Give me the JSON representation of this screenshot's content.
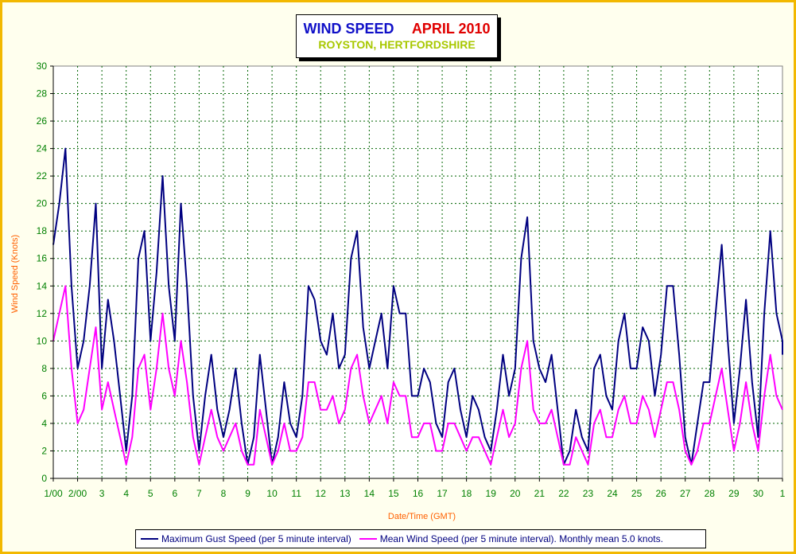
{
  "title": {
    "left": "WIND SPEED",
    "right": "APRIL 2010",
    "subtitle": "ROYSTON, HERTFORDSHIRE"
  },
  "legend": {
    "gust": "Maximum Gust Speed (per 5 minute interval)",
    "mean": "Mean Wind Speed (per 5 minute interval). Monthly mean 5.0 knots."
  },
  "colors": {
    "gust": "#000080",
    "mean": "#ff00ff",
    "grid": "#006400",
    "xtick": "#008000",
    "ytick": "#008000",
    "axis_title": "#ff6000",
    "border": "#f2b800"
  },
  "chart_data": {
    "type": "line",
    "title": "WIND SPEED APRIL 2010",
    "subtitle": "ROYSTON, HERTFORDSHIRE",
    "xlabel": "Date/Time (GMT)",
    "ylabel": "Wind Speed (Knots)",
    "ylim": [
      0,
      30
    ],
    "xlim_days": [
      1,
      31
    ],
    "y_ticks": [
      "0",
      "2",
      "4",
      "6",
      "8",
      "10",
      "12",
      "14",
      "16",
      "18",
      "20",
      "22",
      "24",
      "26",
      "28",
      "30"
    ],
    "x_ticks": [
      "1/00",
      "2/00",
      "3",
      "4",
      "5",
      "6",
      "7",
      "8",
      "9",
      "10",
      "11",
      "12",
      "13",
      "14",
      "15",
      "16",
      "17",
      "18",
      "19",
      "20",
      "21",
      "22",
      "23",
      "24",
      "25",
      "26",
      "27",
      "28",
      "29",
      "30",
      "1"
    ],
    "grid": true,
    "legend_position": "bottom",
    "series": [
      {
        "name": "Maximum Gust Speed (per 5 minute interval)",
        "x_day": [
          1.0,
          1.25,
          1.5,
          1.75,
          2.0,
          2.25,
          2.5,
          2.75,
          3.0,
          3.25,
          3.5,
          3.75,
          4.0,
          4.25,
          4.5,
          4.75,
          5.0,
          5.25,
          5.5,
          5.75,
          6.0,
          6.25,
          6.5,
          6.75,
          7.0,
          7.25,
          7.5,
          7.75,
          8.0,
          8.25,
          8.5,
          8.75,
          9.0,
          9.25,
          9.5,
          9.75,
          10.0,
          10.25,
          10.5,
          10.75,
          11.0,
          11.25,
          11.5,
          11.75,
          12.0,
          12.25,
          12.5,
          12.75,
          13.0,
          13.25,
          13.5,
          13.75,
          14.0,
          14.25,
          14.5,
          14.75,
          15.0,
          15.25,
          15.5,
          15.75,
          16.0,
          16.25,
          16.5,
          16.75,
          17.0,
          17.25,
          17.5,
          17.75,
          18.0,
          18.25,
          18.5,
          18.75,
          19.0,
          19.25,
          19.5,
          19.75,
          20.0,
          20.25,
          20.5,
          20.75,
          21.0,
          21.25,
          21.5,
          21.75,
          22.0,
          22.25,
          22.5,
          22.75,
          23.0,
          23.25,
          23.5,
          23.75,
          24.0,
          24.25,
          24.5,
          24.75,
          25.0,
          25.25,
          25.5,
          25.75,
          26.0,
          26.25,
          26.5,
          26.75,
          27.0,
          27.25,
          27.5,
          27.75,
          28.0,
          28.25,
          28.5,
          28.75,
          29.0,
          29.25,
          29.5,
          29.75,
          30.0,
          30.25,
          30.5,
          30.75,
          31.0,
          31.25
        ],
        "values": [
          17,
          20,
          24,
          14,
          8,
          10,
          14,
          20,
          8,
          13,
          10,
          6,
          2,
          6,
          16,
          18,
          10,
          15,
          22,
          14,
          10,
          20,
          14,
          6,
          2,
          6,
          9,
          5,
          3,
          5,
          8,
          4,
          1,
          3,
          9,
          5,
          1,
          3,
          7,
          4,
          3,
          6,
          14,
          13,
          10,
          9,
          12,
          8,
          9,
          16,
          18,
          11,
          8,
          10,
          12,
          8,
          14,
          12,
          12,
          6,
          6,
          8,
          7,
          4,
          3,
          7,
          8,
          5,
          3,
          6,
          5,
          3,
          2,
          5,
          9,
          6,
          8,
          16,
          19,
          10,
          8,
          7,
          9,
          5,
          1,
          2,
          5,
          3,
          2,
          8,
          9,
          6,
          5,
          10,
          12,
          8,
          8,
          11,
          10,
          6,
          9,
          14,
          14,
          9,
          3,
          1,
          4,
          7,
          7,
          12,
          17,
          10,
          4,
          8,
          13,
          7,
          3,
          12,
          18,
          12,
          10,
          9
        ]
      },
      {
        "name": "Mean Wind Speed (per 5 minute interval). Monthly mean 5.0 knots.",
        "x_day": [
          1.0,
          1.25,
          1.5,
          1.75,
          2.0,
          2.25,
          2.5,
          2.75,
          3.0,
          3.25,
          3.5,
          3.75,
          4.0,
          4.25,
          4.5,
          4.75,
          5.0,
          5.25,
          5.5,
          5.75,
          6.0,
          6.25,
          6.5,
          6.75,
          7.0,
          7.25,
          7.5,
          7.75,
          8.0,
          8.25,
          8.5,
          8.75,
          9.0,
          9.25,
          9.5,
          9.75,
          10.0,
          10.25,
          10.5,
          10.75,
          11.0,
          11.25,
          11.5,
          11.75,
          12.0,
          12.25,
          12.5,
          12.75,
          13.0,
          13.25,
          13.5,
          13.75,
          14.0,
          14.25,
          14.5,
          14.75,
          15.0,
          15.25,
          15.5,
          15.75,
          16.0,
          16.25,
          16.5,
          16.75,
          17.0,
          17.25,
          17.5,
          17.75,
          18.0,
          18.25,
          18.5,
          18.75,
          19.0,
          19.25,
          19.5,
          19.75,
          20.0,
          20.25,
          20.5,
          20.75,
          21.0,
          21.25,
          21.5,
          21.75,
          22.0,
          22.25,
          22.5,
          22.75,
          23.0,
          23.25,
          23.5,
          23.75,
          24.0,
          24.25,
          24.5,
          24.75,
          25.0,
          25.25,
          25.5,
          25.75,
          26.0,
          26.25,
          26.5,
          26.75,
          27.0,
          27.25,
          27.5,
          27.75,
          28.0,
          28.25,
          28.5,
          28.75,
          29.0,
          29.25,
          29.5,
          29.75,
          30.0,
          30.25,
          30.5,
          30.75,
          31.0,
          31.25
        ],
        "values": [
          10,
          12,
          14,
          8,
          4,
          5,
          8,
          11,
          5,
          7,
          5,
          3,
          1,
          3,
          8,
          9,
          5,
          8,
          12,
          8,
          6,
          10,
          7,
          3,
          1,
          3,
          5,
          3,
          2,
          3,
          4,
          2,
          1,
          1,
          5,
          3,
          1,
          2,
          4,
          2,
          2,
          3,
          7,
          7,
          5,
          5,
          6,
          4,
          5,
          8,
          9,
          6,
          4,
          5,
          6,
          4,
          7,
          6,
          6,
          3,
          3,
          4,
          4,
          2,
          2,
          4,
          4,
          3,
          2,
          3,
          3,
          2,
          1,
          3,
          5,
          3,
          4,
          8,
          10,
          5,
          4,
          4,
          5,
          3,
          1,
          1,
          3,
          2,
          1,
          4,
          5,
          3,
          3,
          5,
          6,
          4,
          4,
          6,
          5,
          3,
          5,
          7,
          7,
          5,
          2,
          1,
          2,
          4,
          4,
          6,
          8,
          5,
          2,
          4,
          7,
          4,
          2,
          6,
          9,
          6,
          5,
          5
        ]
      }
    ]
  }
}
